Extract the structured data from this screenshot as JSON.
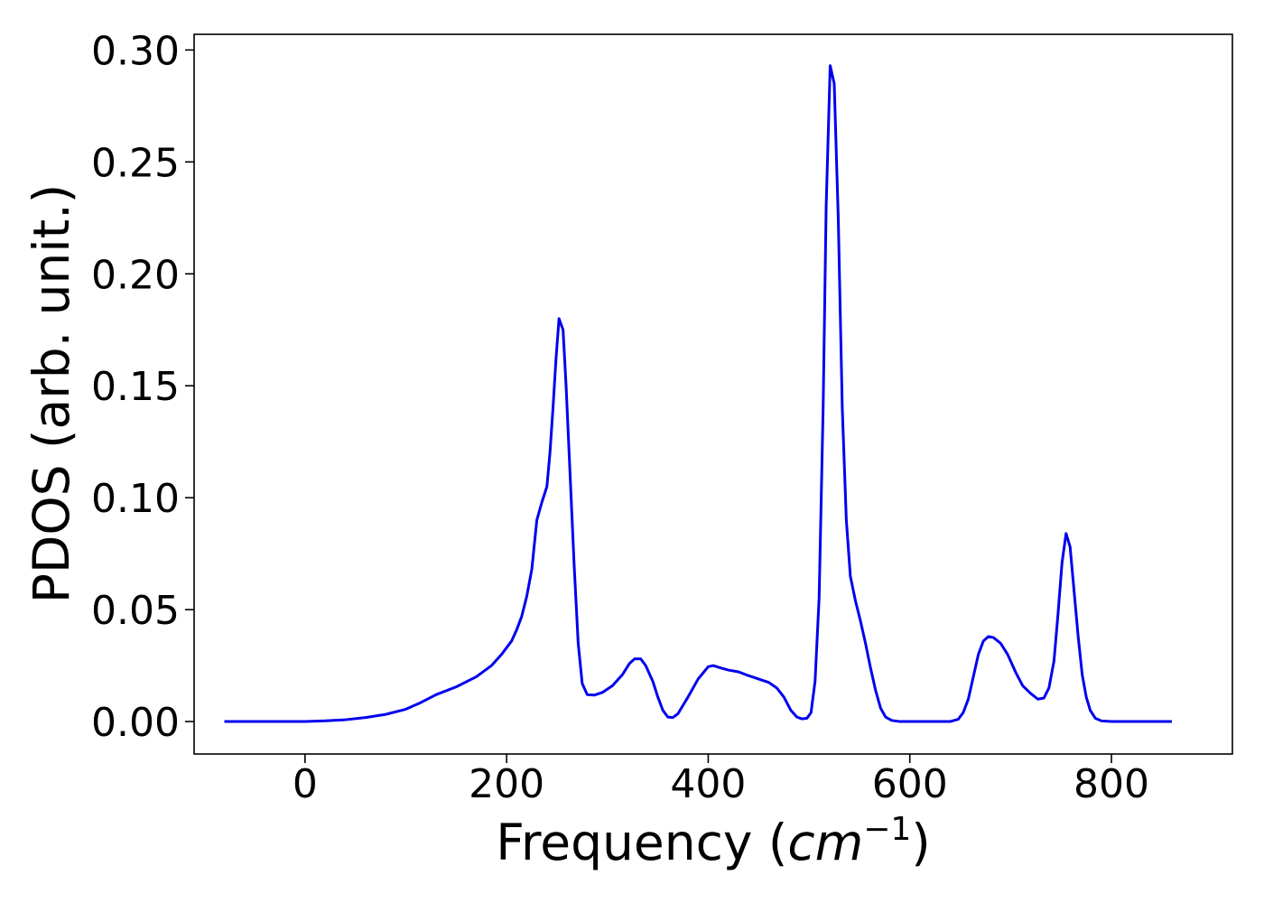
{
  "chart_data": {
    "type": "line",
    "xlabel": "Frequency",
    "xlabel_unit": {
      "base": "cm",
      "exponent": "−1"
    },
    "ylabel": "PDOS (arb. unit.)",
    "xlim": [
      -110,
      920
    ],
    "ylim": [
      -0.0145,
      0.307
    ],
    "x_ticks": [
      0,
      200,
      400,
      600,
      800
    ],
    "x_tick_labels": [
      "0",
      "200",
      "400",
      "600",
      "800"
    ],
    "y_ticks": [
      0.0,
      0.05,
      0.1,
      0.15,
      0.2,
      0.25,
      0.3
    ],
    "y_tick_labels": [
      "0.00",
      "0.05",
      "0.10",
      "0.15",
      "0.20",
      "0.25",
      "0.30"
    ],
    "grid": false,
    "series": [
      {
        "color": "#0000ee",
        "points": [
          [
            -80,
            0.0
          ],
          [
            0,
            0.0
          ],
          [
            20,
            0.0003
          ],
          [
            40,
            0.0008
          ],
          [
            60,
            0.0018
          ],
          [
            80,
            0.0032
          ],
          [
            100,
            0.0055
          ],
          [
            115,
            0.0085
          ],
          [
            130,
            0.012
          ],
          [
            150,
            0.0155
          ],
          [
            170,
            0.02
          ],
          [
            185,
            0.025
          ],
          [
            195,
            0.03
          ],
          [
            205,
            0.036
          ],
          [
            210,
            0.041
          ],
          [
            215,
            0.047
          ],
          [
            220,
            0.056
          ],
          [
            225,
            0.068
          ],
          [
            230,
            0.09
          ],
          [
            235,
            0.098
          ],
          [
            240,
            0.105
          ],
          [
            243,
            0.12
          ],
          [
            246,
            0.14
          ],
          [
            249,
            0.162
          ],
          [
            252,
            0.18
          ],
          [
            256,
            0.175
          ],
          [
            259,
            0.15
          ],
          [
            263,
            0.11
          ],
          [
            267,
            0.07
          ],
          [
            271,
            0.035
          ],
          [
            275,
            0.017
          ],
          [
            280,
            0.012
          ],
          [
            287,
            0.0118
          ],
          [
            295,
            0.013
          ],
          [
            305,
            0.016
          ],
          [
            315,
            0.021
          ],
          [
            322,
            0.026
          ],
          [
            327,
            0.028
          ],
          [
            333,
            0.028
          ],
          [
            338,
            0.025
          ],
          [
            345,
            0.018
          ],
          [
            350,
            0.011
          ],
          [
            355,
            0.005
          ],
          [
            360,
            0.002
          ],
          [
            365,
            0.0018
          ],
          [
            370,
            0.0035
          ],
          [
            380,
            0.011
          ],
          [
            390,
            0.019
          ],
          [
            400,
            0.0245
          ],
          [
            405,
            0.025
          ],
          [
            412,
            0.024
          ],
          [
            420,
            0.023
          ],
          [
            430,
            0.0222
          ],
          [
            440,
            0.0205
          ],
          [
            450,
            0.019
          ],
          [
            460,
            0.0175
          ],
          [
            468,
            0.015
          ],
          [
            475,
            0.011
          ],
          [
            482,
            0.005
          ],
          [
            488,
            0.002
          ],
          [
            493,
            0.0012
          ],
          [
            498,
            0.0015
          ],
          [
            502,
            0.004
          ],
          [
            506,
            0.018
          ],
          [
            510,
            0.055
          ],
          [
            514,
            0.14
          ],
          [
            517,
            0.23
          ],
          [
            521,
            0.293
          ],
          [
            525,
            0.285
          ],
          [
            529,
            0.225
          ],
          [
            533,
            0.14
          ],
          [
            537,
            0.09
          ],
          [
            541,
            0.065
          ],
          [
            546,
            0.054
          ],
          [
            551,
            0.045
          ],
          [
            556,
            0.035
          ],
          [
            561,
            0.024
          ],
          [
            566,
            0.014
          ],
          [
            571,
            0.006
          ],
          [
            576,
            0.002
          ],
          [
            582,
            0.0005
          ],
          [
            590,
            0.0
          ],
          [
            640,
            0.0
          ],
          [
            648,
            0.001
          ],
          [
            653,
            0.004
          ],
          [
            658,
            0.01
          ],
          [
            663,
            0.02
          ],
          [
            668,
            0.03
          ],
          [
            673,
            0.036
          ],
          [
            678,
            0.038
          ],
          [
            683,
            0.0375
          ],
          [
            690,
            0.035
          ],
          [
            697,
            0.03
          ],
          [
            705,
            0.022
          ],
          [
            712,
            0.016
          ],
          [
            720,
            0.0125
          ],
          [
            727,
            0.01
          ],
          [
            733,
            0.0105
          ],
          [
            738,
            0.015
          ],
          [
            743,
            0.027
          ],
          [
            747,
            0.048
          ],
          [
            751,
            0.071
          ],
          [
            755,
            0.084
          ],
          [
            759,
            0.078
          ],
          [
            763,
            0.058
          ],
          [
            767,
            0.038
          ],
          [
            771,
            0.021
          ],
          [
            775,
            0.011
          ],
          [
            779,
            0.005
          ],
          [
            784,
            0.0015
          ],
          [
            790,
            0.0003
          ],
          [
            800,
            0.0
          ],
          [
            860,
            0.0
          ]
        ]
      }
    ]
  }
}
